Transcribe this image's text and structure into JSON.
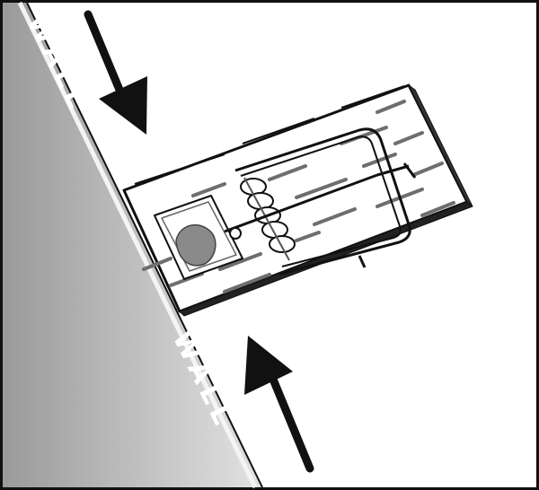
{
  "illustration": {
    "wall_label_top": "WALL",
    "wall_label_bottom": "WALL",
    "colors": {
      "wall_light": "#d8d8d8",
      "wall_dark": "#8c8c8c",
      "outline": "#111111",
      "arrow": "#111111",
      "bait": "#8a8a8a",
      "wood_grain": "#7a7a7a"
    },
    "icons": [
      "arrow-down-right-icon",
      "arrow-up-left-icon",
      "mousetrap-icon",
      "bait-icon"
    ]
  }
}
